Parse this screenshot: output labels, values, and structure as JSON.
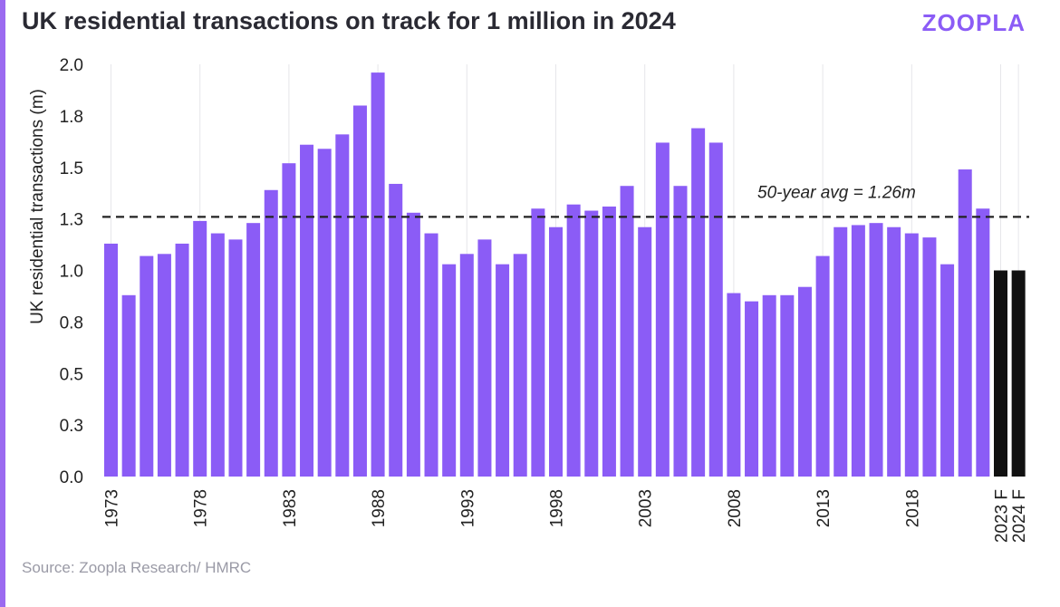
{
  "header": {
    "title": "UK residential transactions on track for 1 million in 2024",
    "brand": "ZOOPLA"
  },
  "footer": {
    "source": "Source: Zoopla Research/ HMRC"
  },
  "colors": {
    "bar": "#8B5CF6",
    "forecast_bar": "#111111",
    "avg_line": "#222222",
    "grid": "#e6e6ea",
    "accent": "#9B6AF0"
  },
  "chart_data": {
    "type": "bar",
    "ylabel": "UK residential transactions (m)",
    "ylim": [
      0,
      2.0
    ],
    "y_tick_labels": [
      "0.0",
      "0.3",
      "0.5",
      "0.8",
      "1.0",
      "1.3",
      "1.5",
      "1.8",
      "2.0"
    ],
    "y_tick_values": [
      0,
      0.25,
      0.5,
      0.75,
      1.0,
      1.25,
      1.5,
      1.75,
      2.0
    ],
    "x_tick_labels": [
      "1973",
      "1978",
      "1983",
      "1988",
      "1993",
      "1998",
      "2003",
      "2008",
      "2013",
      "2018",
      "2023 F",
      "2024 F"
    ],
    "grid": "vertical",
    "categories": [
      "1973",
      "1974",
      "1975",
      "1976",
      "1977",
      "1978",
      "1979",
      "1980",
      "1981",
      "1982",
      "1983",
      "1984",
      "1985",
      "1986",
      "1987",
      "1988",
      "1989",
      "1990",
      "1991",
      "1992",
      "1993",
      "1994",
      "1995",
      "1996",
      "1997",
      "1998",
      "1999",
      "2000",
      "2001",
      "2002",
      "2003",
      "2004",
      "2005",
      "2006",
      "2007",
      "2008",
      "2009",
      "2010",
      "2011",
      "2012",
      "2013",
      "2014",
      "2015",
      "2016",
      "2017",
      "2018",
      "2019",
      "2020",
      "2021",
      "2022",
      "2023 F",
      "2024 F"
    ],
    "values": [
      1.13,
      0.88,
      1.07,
      1.08,
      1.13,
      1.24,
      1.18,
      1.15,
      1.23,
      1.39,
      1.52,
      1.61,
      1.59,
      1.66,
      1.8,
      1.96,
      1.42,
      1.28,
      1.18,
      1.03,
      1.08,
      1.15,
      1.03,
      1.08,
      1.3,
      1.21,
      1.32,
      1.29,
      1.31,
      1.41,
      1.21,
      1.62,
      1.41,
      1.69,
      1.62,
      0.89,
      0.85,
      0.88,
      0.88,
      0.92,
      1.07,
      1.21,
      1.22,
      1.23,
      1.21,
      1.18,
      1.16,
      1.03,
      1.49,
      1.3,
      1.0,
      1.0
    ],
    "forecast": [
      false,
      false,
      false,
      false,
      false,
      false,
      false,
      false,
      false,
      false,
      false,
      false,
      false,
      false,
      false,
      false,
      false,
      false,
      false,
      false,
      false,
      false,
      false,
      false,
      false,
      false,
      false,
      false,
      false,
      false,
      false,
      false,
      false,
      false,
      false,
      false,
      false,
      false,
      false,
      false,
      false,
      false,
      false,
      false,
      false,
      false,
      false,
      false,
      false,
      false,
      true,
      true
    ],
    "reference_line": {
      "value": 1.26,
      "label": "50-year avg = 1.26m",
      "style": "dashed"
    }
  }
}
